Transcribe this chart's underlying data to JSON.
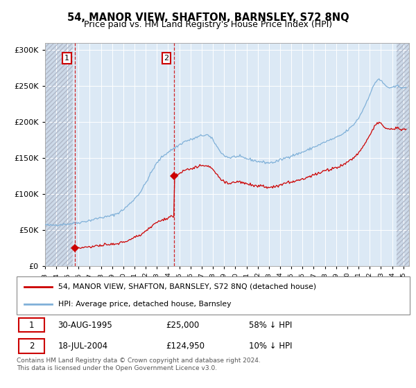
{
  "title": "54, MANOR VIEW, SHAFTON, BARNSLEY, S72 8NQ",
  "subtitle": "Price paid vs. HM Land Registry's House Price Index (HPI)",
  "background_color": "#ffffff",
  "plot_bg_color": "#dce9f5",
  "hatch_bg_color": "#ccd9e8",
  "grid_color": "#ffffff",
  "sale1_date_num": 1995.664,
  "sale1_price": 25000,
  "sale2_date_num": 2004.54,
  "sale2_price": 124950,
  "hpi_label": "HPI: Average price, detached house, Barnsley",
  "price_label": "54, MANOR VIEW, SHAFTON, BARNSLEY, S72 8NQ (detached house)",
  "legend1_date": "30-AUG-1995",
  "legend1_price": "£25,000",
  "legend1_hpi": "58% ↓ HPI",
  "legend2_date": "18-JUL-2004",
  "legend2_price": "£124,950",
  "legend2_hpi": "10% ↓ HPI",
  "footer": "Contains HM Land Registry data © Crown copyright and database right 2024.\nThis data is licensed under the Open Government Licence v3.0.",
  "ylim": [
    0,
    310000
  ],
  "xlim_start": 1993.0,
  "xlim_end": 2025.5,
  "hpi_color": "#7fb0d8",
  "price_color": "#cc0000",
  "marker_color": "#cc0000",
  "hatch_left_end": 1995.5,
  "hatch_right_start": 2024.42
}
